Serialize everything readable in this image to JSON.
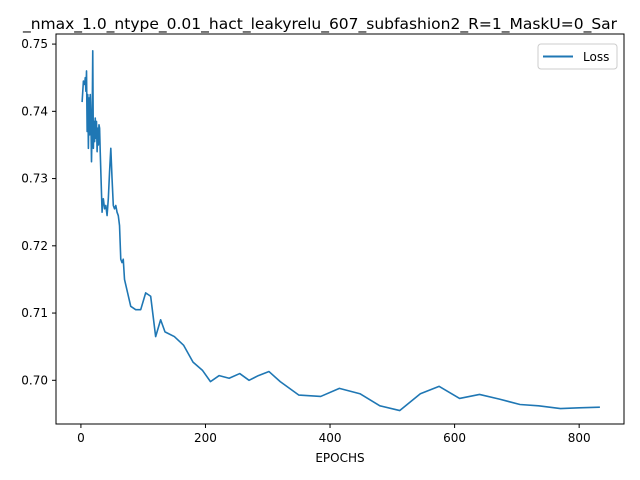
{
  "chart_data": {
    "type": "line",
    "title": "_nmax_1.0_ntype_0.01_hact_leakyrelu_607_subfashion2_R=1_MaskU=0_Sar",
    "xlabel": "EPOCHS",
    "ylabel": "",
    "xlim": [
      -40,
      872
    ],
    "ylim": [
      0.6935,
      0.7515
    ],
    "xticks": [
      0,
      200,
      400,
      600,
      800
    ],
    "xtick_labels": [
      "0",
      "200",
      "400",
      "600",
      "800"
    ],
    "yticks": [
      0.7,
      0.71,
      0.72,
      0.73,
      0.74,
      0.75
    ],
    "ytick_labels": [
      "0.70",
      "0.71",
      "0.72",
      "0.73",
      "0.74",
      "0.75"
    ],
    "grid": false,
    "legend_position": "top-right",
    "series": [
      {
        "name": "Loss",
        "color": "#1f77b4",
        "x": [
          2,
          4,
          6,
          7,
          8,
          9,
          10,
          11,
          12,
          13,
          14,
          15,
          16,
          17,
          18,
          19,
          20,
          21,
          22,
          23,
          24,
          25,
          26,
          27,
          28,
          29,
          30,
          31,
          32,
          33,
          34,
          35,
          36,
          38,
          40,
          42,
          44,
          46,
          48,
          50,
          52,
          54,
          56,
          58,
          60,
          62,
          64,
          66,
          68,
          70,
          75,
          80,
          88,
          96,
          104,
          112,
          120,
          128,
          135,
          150,
          165,
          180,
          195,
          208,
          222,
          238,
          255,
          270,
          285,
          302,
          320,
          350,
          385,
          415,
          448,
          480,
          512,
          545,
          575,
          608,
          640,
          672,
          705,
          735,
          770,
          800,
          832
        ],
        "y": [
          0.7415,
          0.7445,
          0.744,
          0.745,
          0.743,
          0.746,
          0.737,
          0.7425,
          0.7345,
          0.742,
          0.7365,
          0.7425,
          0.739,
          0.7325,
          0.738,
          0.749,
          0.7345,
          0.7385,
          0.7355,
          0.739,
          0.736,
          0.7385,
          0.734,
          0.7375,
          0.735,
          0.738,
          0.7375,
          0.734,
          0.731,
          0.728,
          0.725,
          0.7265,
          0.727,
          0.7255,
          0.726,
          0.7245,
          0.727,
          0.731,
          0.7345,
          0.73,
          0.726,
          0.7255,
          0.726,
          0.725,
          0.7245,
          0.723,
          0.718,
          0.7175,
          0.718,
          0.715,
          0.713,
          0.711,
          0.7105,
          0.7105,
          0.713,
          0.7125,
          0.7065,
          0.709,
          0.7072,
          0.7065,
          0.7052,
          0.7027,
          0.7015,
          0.6998,
          0.7007,
          0.7003,
          0.701,
          0.7,
          0.7007,
          0.7013,
          0.6998,
          0.6978,
          0.6976,
          0.6988,
          0.698,
          0.6962,
          0.6955,
          0.698,
          0.6991,
          0.6973,
          0.6979,
          0.6972,
          0.6964,
          0.6962,
          0.6958,
          0.6959,
          0.696
        ]
      }
    ]
  }
}
